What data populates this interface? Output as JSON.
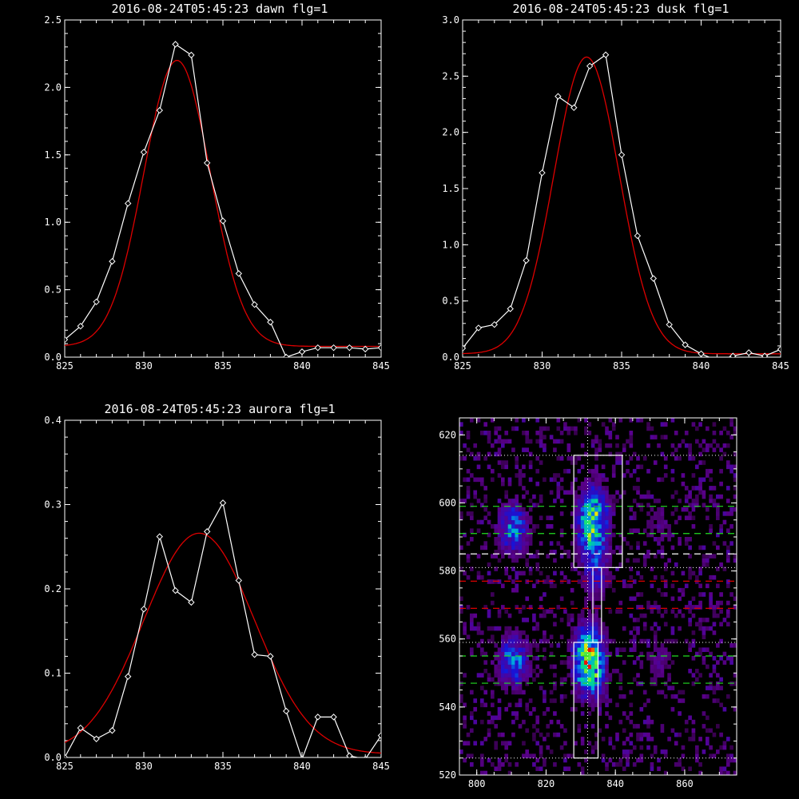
{
  "colors": {
    "background": "#000000",
    "axis": "#ffffff",
    "data_line": "#ffffff",
    "fit_line": "#dd0000",
    "green_dash": "#22dd22",
    "red_dash": "#dd0000",
    "white_dash": "#ffffff"
  },
  "chart_data": [
    {
      "type": "line",
      "title": "2016-08-24T05:45:23 dawn flg=1",
      "xlim": [
        825,
        845
      ],
      "ylim": [
        0,
        2.5
      ],
      "xticks": [
        "825",
        "830",
        "835",
        "840",
        "845"
      ],
      "yticks": [
        "0.0",
        "0.5",
        "1.0",
        "1.5",
        "2.0",
        "2.5"
      ],
      "series": [
        {
          "role": "data",
          "marker": "diamond",
          "x": [
            825,
            826,
            827,
            828,
            829,
            830,
            831,
            832,
            833,
            834,
            835,
            836,
            837,
            838,
            839,
            840,
            841,
            842,
            843,
            844,
            845
          ],
          "y": [
            0.13,
            0.23,
            0.41,
            0.71,
            1.14,
            1.52,
            1.83,
            2.32,
            2.24,
            1.44,
            1.01,
            0.62,
            0.39,
            0.26,
            0.0,
            0.04,
            0.07,
            0.07,
            0.07,
            0.06,
            0.07
          ]
        },
        {
          "role": "fit",
          "model": "gaussian",
          "amplitude": 2.12,
          "center": 832.1,
          "sigma": 2.1,
          "offset": 0.08
        }
      ]
    },
    {
      "type": "line",
      "title": "2016-08-24T05:45:23 dusk flg=1",
      "xlim": [
        825,
        845
      ],
      "ylim": [
        0,
        3.0
      ],
      "xticks": [
        "825",
        "830",
        "835",
        "840",
        "845"
      ],
      "yticks": [
        "0.0",
        "0.5",
        "1.0",
        "1.5",
        "2.0",
        "2.5",
        "3.0"
      ],
      "series": [
        {
          "role": "data",
          "marker": "diamond",
          "x": [
            825,
            826,
            827,
            828,
            829,
            830,
            831,
            832,
            833,
            834,
            835,
            836,
            837,
            838,
            839,
            840,
            841,
            842,
            843,
            844,
            845
          ],
          "y": [
            0.08,
            0.26,
            0.29,
            0.43,
            0.86,
            1.64,
            2.32,
            2.22,
            2.59,
            2.69,
            1.8,
            1.08,
            0.7,
            0.29,
            0.11,
            0.03,
            -0.03,
            0.01,
            0.04,
            0.01,
            0.07
          ]
        },
        {
          "role": "fit",
          "model": "gaussian",
          "amplitude": 2.64,
          "center": 832.8,
          "sigma": 2.05,
          "offset": 0.03
        }
      ]
    },
    {
      "type": "line",
      "title": "2016-08-24T05:45:23 aurora flg=1",
      "xlim": [
        825,
        845
      ],
      "ylim": [
        0,
        0.4
      ],
      "xticks": [
        "825",
        "830",
        "835",
        "840",
        "845"
      ],
      "yticks": [
        "0.0",
        "0.1",
        "0.2",
        "0.3",
        "0.4"
      ],
      "series": [
        {
          "role": "data",
          "marker": "diamond",
          "x": [
            825,
            826,
            827,
            828,
            829,
            830,
            831,
            832,
            833,
            834,
            835,
            836,
            837,
            838,
            839,
            840,
            841,
            842,
            843,
            844,
            845
          ],
          "y": [
            0.0,
            0.035,
            0.022,
            0.032,
            0.096,
            0.176,
            0.262,
            0.198,
            0.184,
            0.268,
            0.302,
            0.21,
            0.122,
            0.12,
            0.055,
            -0.002,
            0.048,
            0.048,
            0.002,
            -0.002,
            0.026
          ]
        },
        {
          "role": "fit",
          "model": "gaussian",
          "amplitude": 0.262,
          "center": 833.5,
          "sigma": 3.5,
          "offset": 0.004
        }
      ]
    },
    {
      "type": "heatmap",
      "title": "",
      "xlim": [
        795,
        875
      ],
      "ylim": [
        520,
        625
      ],
      "xticks": [
        "800",
        "820",
        "840",
        "860"
      ],
      "yticks": [
        "520",
        "540",
        "560",
        "580",
        "600",
        "620"
      ],
      "hotspots": [
        {
          "x": 810,
          "y": 592,
          "intensity": 0.55
        },
        {
          "x": 810,
          "y": 553,
          "intensity": 0.55
        },
        {
          "x": 833,
          "y": 594,
          "intensity": 0.85
        },
        {
          "x": 832,
          "y": 553,
          "intensity": 1.0
        },
        {
          "x": 834,
          "y": 578,
          "intensity": 0.3
        },
        {
          "x": 852,
          "y": 593,
          "intensity": 0.2
        },
        {
          "x": 852,
          "y": 553,
          "intensity": 0.2
        }
      ],
      "boxes": [
        {
          "x0": 828,
          "x1": 842,
          "y0": 581,
          "y1": 614
        },
        {
          "x0": 828,
          "x1": 835,
          "y0": 525,
          "y1": 559
        },
        {
          "x0": 833.5,
          "x1": 836,
          "y0": 559,
          "y1": 581
        }
      ],
      "vline_dotted": 832,
      "hlines_dotted": [
        614,
        581,
        559,
        525
      ],
      "hlines_green_dashed": [
        599,
        591,
        555,
        547
      ],
      "hlines_red_dashed": [
        577,
        569
      ],
      "hlines_white_dashed": [
        585
      ]
    }
  ]
}
